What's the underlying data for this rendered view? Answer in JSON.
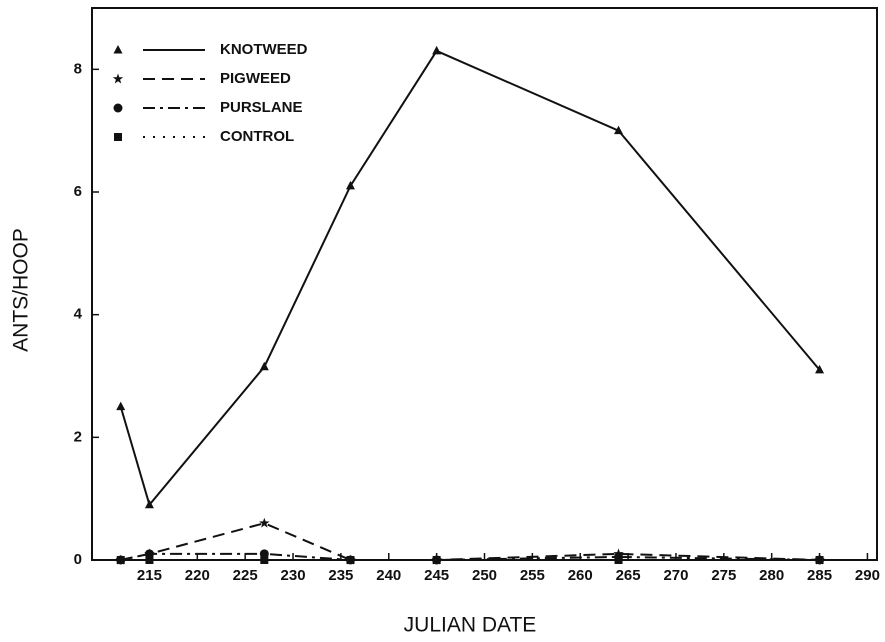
{
  "chart_data": {
    "type": "line",
    "x_label": "JULIAN DATE",
    "y_label": "ANTS/HOOP",
    "x": [
      212,
      215,
      227,
      236,
      245,
      264,
      285
    ],
    "series": [
      {
        "name": "KNOTWEED",
        "color": "#111111",
        "line_style": "solid",
        "marker": "triangle",
        "values": [
          2.5,
          0.9,
          3.15,
          6.1,
          8.3,
          7.0,
          3.1
        ]
      },
      {
        "name": "PIGWEED",
        "color": "#111111",
        "line_style": "dashed",
        "marker": "star",
        "values": [
          0,
          0.1,
          0.6,
          0,
          0,
          0.1,
          0
        ]
      },
      {
        "name": "PURSLANE",
        "color": "#111111",
        "line_style": "dashdot",
        "marker": "circle",
        "values": [
          0,
          0.1,
          0.1,
          0,
          0,
          0.05,
          0
        ]
      },
      {
        "name": "CONTROL",
        "color": "#111111",
        "line_style": "dotted",
        "marker": "square",
        "values": [
          0,
          0,
          0,
          0,
          0,
          0,
          0
        ]
      }
    ],
    "xlim": [
      209,
      291
    ],
    "xticks": [
      215,
      220,
      225,
      230,
      235,
      240,
      245,
      250,
      255,
      260,
      265,
      270,
      275,
      280,
      285,
      290
    ],
    "ylim": [
      0,
      9
    ],
    "yticks": [
      0,
      2,
      4,
      6,
      8
    ],
    "legend": "upper left",
    "grid": false
  }
}
